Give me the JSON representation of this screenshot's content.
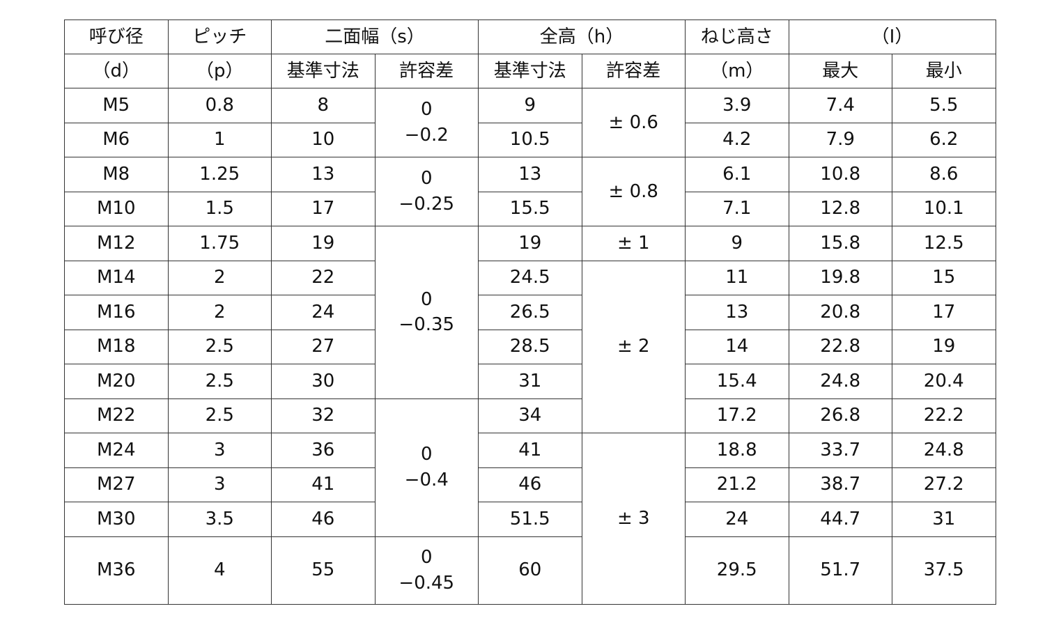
{
  "header": {
    "nominal": "呼び径",
    "nominal_sym": "（d）",
    "pitch": "ピッチ",
    "pitch_sym": "（p）",
    "width_across_flats": "二面幅（s）",
    "height_total": "全高（h）",
    "thread_height": "ねじ高さ",
    "thread_height_sym": "（m）",
    "l_group": "（I）",
    "basic_size": "基準寸法",
    "tolerance": "許容差",
    "max": "最大",
    "min": "最小"
  },
  "rows": [
    {
      "d": "M5",
      "p": "0.8",
      "s": "8",
      "h": "9",
      "m": "3.9",
      "lmax": "7.4",
      "lmin": "5.5"
    },
    {
      "d": "M6",
      "p": "1",
      "s": "10",
      "h": "10.5",
      "m": "4.2",
      "lmax": "7.9",
      "lmin": "6.2"
    },
    {
      "d": "M8",
      "p": "1.25",
      "s": "13",
      "h": "13",
      "m": "6.1",
      "lmax": "10.8",
      "lmin": "8.6"
    },
    {
      "d": "M10",
      "p": "1.5",
      "s": "17",
      "h": "15.5",
      "m": "7.1",
      "lmax": "12.8",
      "lmin": "10.1"
    },
    {
      "d": "M12",
      "p": "1.75",
      "s": "19",
      "h": "19",
      "m": "9",
      "lmax": "15.8",
      "lmin": "12.5"
    },
    {
      "d": "M14",
      "p": "2",
      "s": "22",
      "h": "24.5",
      "m": "11",
      "lmax": "19.8",
      "lmin": "15"
    },
    {
      "d": "M16",
      "p": "2",
      "s": "24",
      "h": "26.5",
      "m": "13",
      "lmax": "20.8",
      "lmin": "17"
    },
    {
      "d": "M18",
      "p": "2.5",
      "s": "27",
      "h": "28.5",
      "m": "14",
      "lmax": "22.8",
      "lmin": "19"
    },
    {
      "d": "M20",
      "p": "2.5",
      "s": "30",
      "h": "31",
      "m": "15.4",
      "lmax": "24.8",
      "lmin": "20.4"
    },
    {
      "d": "M22",
      "p": "2.5",
      "s": "32",
      "h": "34",
      "m": "17.2",
      "lmax": "26.8",
      "lmin": "22.2"
    },
    {
      "d": "M24",
      "p": "3",
      "s": "36",
      "h": "41",
      "m": "18.8",
      "lmax": "33.7",
      "lmin": "24.8"
    },
    {
      "d": "M27",
      "p": "3",
      "s": "41",
      "h": "46",
      "m": "21.2",
      "lmax": "38.7",
      "lmin": "27.2"
    },
    {
      "d": "M30",
      "p": "3.5",
      "s": "46",
      "h": "51.5",
      "m": "24",
      "lmax": "44.7",
      "lmin": "31"
    },
    {
      "d": "M36",
      "p": "4",
      "s": "55",
      "h": "60",
      "m": "29.5",
      "lmax": "51.7",
      "lmin": "37.5"
    }
  ],
  "s_tolerances": [
    {
      "start": 0,
      "span": 2,
      "upper": "0",
      "lower": "−0.2"
    },
    {
      "start": 2,
      "span": 2,
      "upper": "0",
      "lower": "−0.25"
    },
    {
      "start": 4,
      "span": 5,
      "upper": "0",
      "lower": "−0.35"
    },
    {
      "start": 9,
      "span": 4,
      "upper": "0",
      "lower": "−0.4"
    },
    {
      "start": 13,
      "span": 1,
      "upper": "0",
      "lower": "−0.45"
    }
  ],
  "h_tolerances": [
    {
      "start": 0,
      "span": 2,
      "value": "± 0.6"
    },
    {
      "start": 2,
      "span": 2,
      "value": "± 0.8"
    },
    {
      "start": 4,
      "span": 1,
      "value": "± 1"
    },
    {
      "start": 5,
      "span": 5,
      "value": "± 2"
    },
    {
      "start": 10,
      "span": 4,
      "value": "± 3"
    }
  ]
}
